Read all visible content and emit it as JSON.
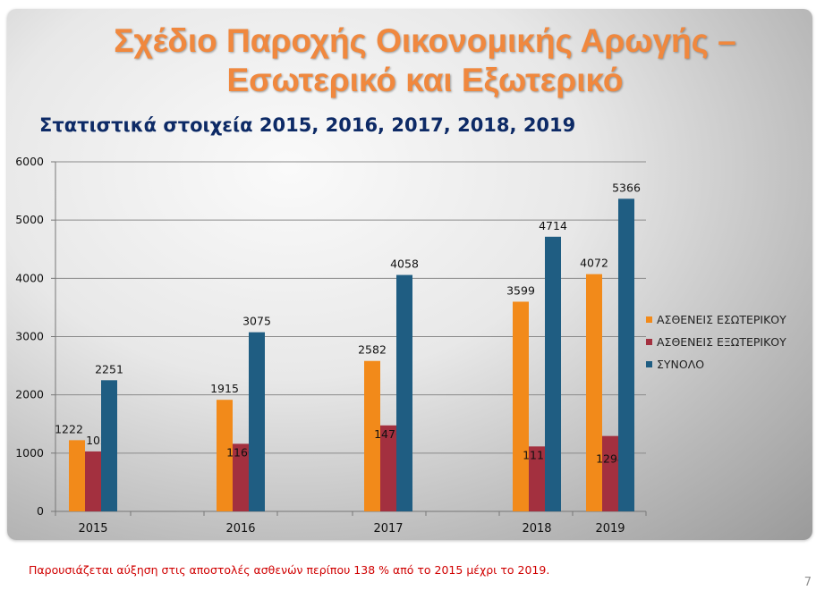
{
  "slide": {
    "title": "Σχέδιο Παροχής Οικονομικής Αρωγής – Εσωτερικό και Εξωτερικό",
    "subtitle": "Στατιστικά στοιχεία 2015, 2016, 2017, 2018, 2019",
    "footnote": "Παρουσιάζεται αύξηση στις αποστολές ασθενών περίπου 138 % από το 2015 μέχρι το 2019.",
    "page_number": "7"
  },
  "chart_data": {
    "type": "bar",
    "categories": [
      "2015",
      "2016",
      "2017",
      "2018",
      "2019"
    ],
    "series": [
      {
        "name": "ΑΣΘΕΝΕΙΣ ΕΣΩΤΕΡΙΚΟΥ",
        "color": "#f28a1a",
        "values": [
          1222,
          1915,
          2582,
          3599,
          4072
        ]
      },
      {
        "name": "ΑΣΘΕΝΕΙΣ ΕΞΩΤΕΡΙΚΟΥ",
        "color": "#a3303f",
        "values": [
          1029,
          1160,
          1476,
          1115,
          1294
        ]
      },
      {
        "name": "ΣΥΝΟΛΟ",
        "color": "#1f5d82",
        "values": [
          2251,
          3075,
          4058,
          4714,
          5366
        ]
      }
    ],
    "ylim": [
      0,
      6000
    ],
    "yticks": [
      0,
      1000,
      2000,
      3000,
      4000,
      5000,
      6000
    ],
    "grid": true,
    "legend_position": "right"
  }
}
